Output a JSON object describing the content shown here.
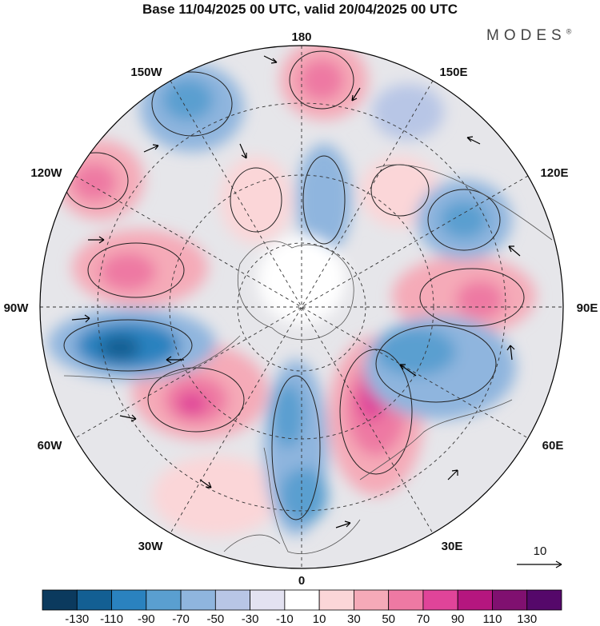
{
  "title": "Base 11/04/2025 00 UTC, valid 20/04/2025 00 UTC",
  "logo": "MODES",
  "logo_mark": "®",
  "longitude_labels": {
    "top": "180",
    "top_left": "150W",
    "top_right": "150E",
    "upper_left": "120W",
    "upper_right": "120E",
    "left": "90W",
    "right": "90E",
    "lower_left": "60W",
    "lower_right": "60E",
    "bottom_left": "30W",
    "bottom_right": "30E",
    "bottom": "0"
  },
  "reference_vector_label": "10",
  "colorbar": {
    "labels": [
      "-130",
      "-110",
      "-90",
      "-70",
      "-50",
      "-30",
      "-10",
      "10",
      "30",
      "50",
      "70",
      "90",
      "110",
      "130"
    ],
    "colors": [
      "#0b3a5e",
      "#135f93",
      "#2a82bf",
      "#5a9fd0",
      "#8fb5de",
      "#b8c6e6",
      "#e3e2f1",
      "#ffffff",
      "#fbd6d8",
      "#f5aab8",
      "#ee79a3",
      "#e04499",
      "#b5167f",
      "#801070",
      "#55086a"
    ]
  },
  "map": {
    "projection": "north-polar-stereographic",
    "field_colors": {
      "negative_strong": "#2a82bf",
      "negative": "#8fb5de",
      "negative_weak": "#d9dcee",
      "positive_weak": "#fbd6d8",
      "positive": "#f5aab8",
      "positive_strong": "#e04499",
      "land_mask": "#e8e8e8"
    }
  }
}
